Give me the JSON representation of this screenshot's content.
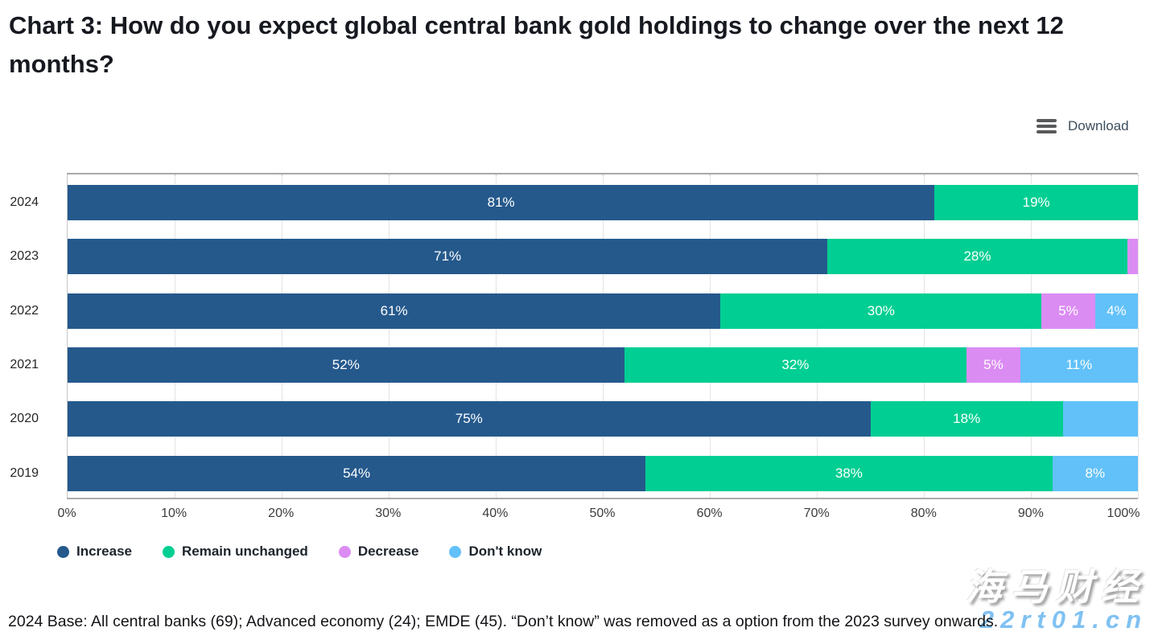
{
  "title": "Chart 3: How do you expect global central bank gold holdings to change over the next 12 months?",
  "download": {
    "label": "Download"
  },
  "footnote": "2024 Base: All central banks (69); Advanced economy (24); EMDE (45). “Don’t know” was removed as a option from the 2023 survey onwards.",
  "watermark": {
    "line1": "海马财经",
    "line2": "22rt01.cn"
  },
  "colors": {
    "increase": "#25598C",
    "remain_unchanged": "#00CE92",
    "decrease": "#DB8CF3",
    "dont_know": "#62C1F8",
    "title_text": "#16191f",
    "bar_label_text": "#ffffff"
  },
  "chart_data": {
    "type": "bar",
    "orientation": "horizontal-stacked",
    "title": "Chart 3: How do you expect global central bank gold holdings to change over the next 12 months?",
    "categories": [
      "2024",
      "2023",
      "2022",
      "2021",
      "2020",
      "2019"
    ],
    "series": [
      {
        "name": "Increase",
        "key": "increase",
        "values": [
          81,
          71,
          61,
          52,
          75,
          54
        ]
      },
      {
        "name": "Remain unchanged",
        "key": "remain_unchanged",
        "values": [
          19,
          28,
          30,
          32,
          18,
          38
        ]
      },
      {
        "name": "Decrease",
        "key": "decrease",
        "values": [
          0,
          1,
          5,
          5,
          0,
          0
        ]
      },
      {
        "name": "Don't know",
        "key": "dont_know",
        "values": [
          0,
          0,
          4,
          11,
          7,
          8
        ]
      }
    ],
    "data_label_format": "N%",
    "hidden_labels": [
      {
        "category": "2023",
        "series": "Decrease"
      },
      {
        "category": "2020",
        "series": "Don't know"
      }
    ],
    "xlabel": "",
    "ylabel": "",
    "xlim": [
      0,
      100
    ],
    "x_ticks": [
      "0%",
      "10%",
      "20%",
      "30%",
      "40%",
      "50%",
      "60%",
      "70%",
      "80%",
      "90%",
      "100%"
    ],
    "grid": "vertical dotted",
    "legend_position": "bottom"
  }
}
